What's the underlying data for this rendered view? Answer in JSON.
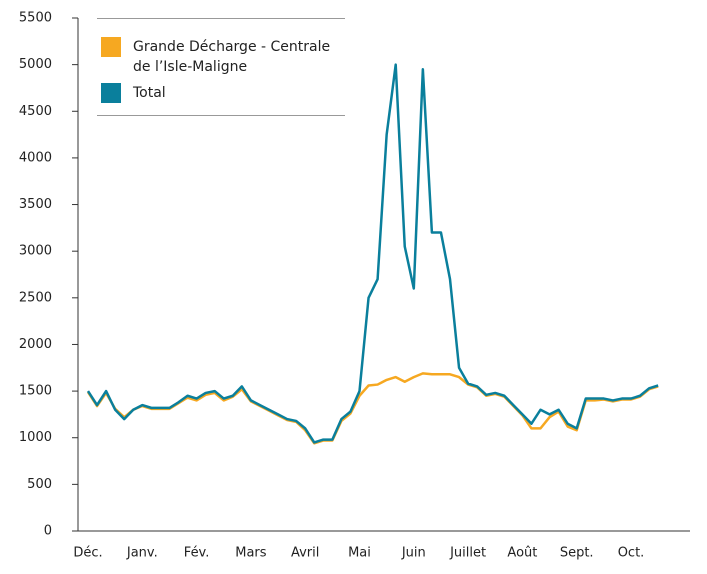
{
  "chart_data": {
    "type": "line",
    "categories": [
      "Déc.",
      null,
      null,
      null,
      null,
      null,
      "Janv.",
      null,
      null,
      null,
      null,
      null,
      "Fév.",
      null,
      null,
      null,
      null,
      null,
      "Mars",
      null,
      null,
      null,
      null,
      null,
      "Avril",
      null,
      null,
      null,
      null,
      null,
      "Mai",
      null,
      null,
      null,
      null,
      null,
      "Juin",
      null,
      null,
      null,
      null,
      null,
      "Juillet",
      null,
      null,
      null,
      null,
      null,
      "Août",
      null,
      null,
      null,
      null,
      null,
      "Sept.",
      null,
      null,
      null,
      null,
      null,
      "Oct.",
      null,
      null,
      null
    ],
    "series": [
      {
        "name": "Grande Décharge - Centrale de l’Isle-Maligne",
        "color": "#f6a821",
        "values": [
          1490,
          1340,
          1480,
          1310,
          1220,
          1300,
          1340,
          1310,
          1310,
          1310,
          1370,
          1430,
          1400,
          1460,
          1480,
          1400,
          1440,
          1520,
          1390,
          1340,
          1290,
          1240,
          1190,
          1170,
          1080,
          940,
          970,
          970,
          1180,
          1260,
          1450,
          1560,
          1570,
          1620,
          1650,
          1600,
          1650,
          1690,
          1680,
          1680,
          1680,
          1650,
          1570,
          1540,
          1450,
          1470,
          1440,
          1340,
          1240,
          1100,
          1100,
          1220,
          1280,
          1120,
          1080,
          1400,
          1400,
          1410,
          1390,
          1410,
          1410,
          1440,
          1520,
          1550
        ]
      },
      {
        "name": "Total",
        "color": "#0a7f9c",
        "values": [
          1500,
          1350,
          1500,
          1300,
          1200,
          1300,
          1350,
          1320,
          1320,
          1320,
          1380,
          1450,
          1420,
          1480,
          1500,
          1420,
          1450,
          1550,
          1400,
          1350,
          1300,
          1250,
          1200,
          1180,
          1100,
          950,
          980,
          980,
          1200,
          1280,
          1500,
          2500,
          2700,
          4250,
          5000,
          3050,
          2600,
          4950,
          3200,
          3200,
          2700,
          1750,
          1580,
          1550,
          1460,
          1480,
          1450,
          1350,
          1250,
          1150,
          1300,
          1250,
          1300,
          1150,
          1100,
          1420,
          1420,
          1420,
          1400,
          1420,
          1420,
          1450,
          1530,
          1560
        ]
      }
    ],
    "ylim": [
      0,
      5500
    ],
    "yticks": [
      0,
      500,
      1000,
      1500,
      2000,
      2500,
      3000,
      3500,
      4000,
      4500,
      5000,
      5500
    ],
    "legend": "top-left"
  }
}
